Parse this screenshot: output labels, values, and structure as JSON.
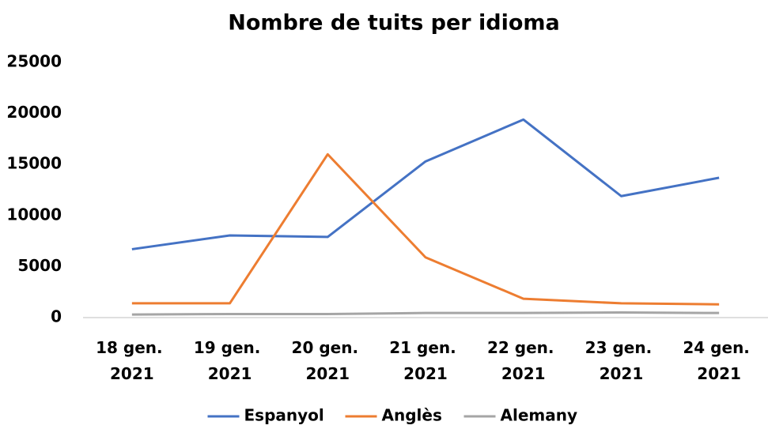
{
  "chart_data": {
    "type": "line",
    "title": "Nombre de tuits per idioma",
    "categories": [
      "18 gen. 2021",
      "19 gen. 2021",
      "20 gen. 2021",
      "21 gen. 2021",
      "22 gen. 2021",
      "23 gen. 2021",
      "24 gen. 2021"
    ],
    "series": [
      {
        "name": "Espanyol",
        "color": "#4472c4",
        "values": [
          6700,
          8050,
          7900,
          15300,
          19400,
          11900,
          13700
        ]
      },
      {
        "name": "Anglès",
        "color": "#ed7d31",
        "values": [
          1400,
          1400,
          16000,
          5900,
          1850,
          1400,
          1300
        ]
      },
      {
        "name": "Alemany",
        "color": "#a5a5a5",
        "values": [
          300,
          350,
          350,
          450,
          450,
          500,
          450
        ]
      }
    ],
    "ylim": [
      0,
      25000
    ],
    "yticks": [
      0,
      5000,
      10000,
      15000,
      20000,
      25000
    ],
    "grid": false,
    "legend": "bottom"
  }
}
